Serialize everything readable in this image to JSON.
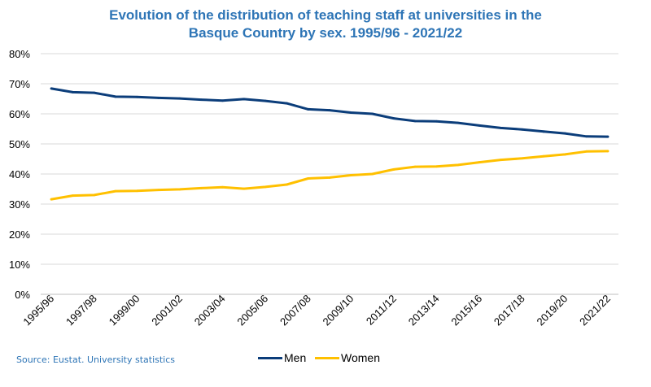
{
  "chart_data": {
    "type": "line",
    "title_line1": "Evolution of the distribution of teaching staff at universities in the",
    "title_line2": "Basque Country by sex. 1995/96 - 2021/22",
    "xlabel": "",
    "ylabel": "",
    "ylim": [
      0,
      80
    ],
    "yticks": [
      "0%",
      "10%",
      "20%",
      "30%",
      "40%",
      "50%",
      "60%",
      "70%",
      "80%"
    ],
    "grid": true,
    "x": [
      "1995/96",
      "1996/97",
      "1997/98",
      "1998/99",
      "1999/00",
      "2000/01",
      "2001/02",
      "2002/03",
      "2003/04",
      "2004/05",
      "2005/06",
      "2006/07",
      "2007/08",
      "2008/09",
      "2009/10",
      "2010/11",
      "2011/12",
      "2012/13",
      "2013/14",
      "2014/15",
      "2015/16",
      "2016/17",
      "2017/18",
      "2018/19",
      "2019/20",
      "2020/21",
      "2021/22"
    ],
    "xtick_labels": [
      "1995/96",
      "1997/98",
      "1999/00",
      "2001/02",
      "2003/04",
      "2005/06",
      "2007/08",
      "2009/10",
      "2011/12",
      "2013/14",
      "2015/16",
      "2017/18",
      "2019/20",
      "2021/22"
    ],
    "series": [
      {
        "name": "Men",
        "color": "#0B3D7A",
        "values": [
          68.4,
          67.2,
          67.0,
          65.7,
          65.6,
          65.3,
          65.1,
          64.7,
          64.4,
          64.9,
          64.3,
          63.5,
          61.5,
          61.2,
          60.4,
          60.0,
          58.5,
          57.6,
          57.5,
          57.0,
          56.1,
          55.3,
          54.8,
          54.1,
          53.5,
          52.5,
          52.4
        ]
      },
      {
        "name": "Women",
        "color": "#FFC000",
        "values": [
          31.6,
          32.8,
          33.0,
          34.3,
          34.4,
          34.7,
          34.9,
          35.3,
          35.6,
          35.1,
          35.7,
          36.5,
          38.5,
          38.8,
          39.6,
          40.0,
          41.5,
          42.4,
          42.5,
          43.0,
          43.9,
          44.7,
          45.2,
          45.9,
          46.5,
          47.5,
          47.6
        ]
      }
    ],
    "legend_position": "bottom-center",
    "source": "Source: Eustat. University statistics"
  }
}
